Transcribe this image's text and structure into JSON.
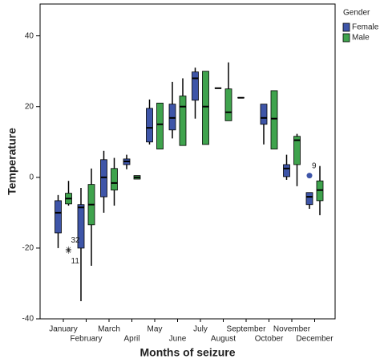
{
  "chart_data": {
    "type": "boxplot",
    "x_label": "Months of seizure",
    "y_label": "Temperature",
    "legend_title": "Gender",
    "legend_position": "upper right",
    "categories": [
      "January",
      "February",
      "March",
      "April",
      "May",
      "June",
      "July",
      "August",
      "September",
      "October",
      "November",
      "December"
    ],
    "ylim": [
      -40,
      49
    ],
    "yticks": [
      -40,
      -20,
      0,
      20,
      40
    ],
    "series": [
      {
        "name": "Female",
        "color": "#3e55a8",
        "low": [
          -20,
          -35,
          -10,
          2.3,
          9.3,
          11,
          16.6,
          25.2,
          22.5,
          9.3,
          -0.7,
          -8.9
        ],
        "q1": [
          -15.7,
          -20,
          -5.5,
          3.6,
          10,
          13.4,
          21.8,
          25.2,
          22.5,
          15,
          0.2,
          -7.7
        ],
        "median": [
          -10,
          -8.5,
          0,
          4.5,
          14,
          16.8,
          28,
          25.2,
          22.5,
          16.8,
          2.5,
          -5.5
        ],
        "q3": [
          -6.6,
          -7.7,
          5,
          5.2,
          19.5,
          20.7,
          29.8,
          25.2,
          22.5,
          20.7,
          3.6,
          -4.3
        ],
        "high": [
          -5,
          -3,
          7.5,
          6.4,
          22,
          27,
          31,
          25.2,
          22.5,
          20.7,
          6.4,
          -4.3
        ],
        "outliers": [
          {
            "category": 11,
            "value": 0.5,
            "label": "9",
            "marker": "circle"
          }
        ]
      },
      {
        "name": "Male",
        "color": "#3fa34d",
        "low": [
          -8,
          -25,
          -8,
          -0.5,
          8,
          9,
          9.3,
          16,
          null,
          8,
          -2.5,
          -10.7
        ],
        "q1": [
          -7.5,
          -13.4,
          -3.6,
          -0.5,
          8,
          9,
          9.3,
          16,
          null,
          8,
          3.6,
          -6.6
        ],
        "median": [
          -6,
          -7.7,
          -1.6,
          0,
          15,
          20,
          20,
          18.4,
          null,
          16.6,
          10.5,
          -3.6
        ],
        "q3": [
          -4.5,
          -2,
          2.5,
          0.5,
          21,
          23,
          30,
          25,
          null,
          24.5,
          11.6,
          -1
        ],
        "high": [
          -1,
          2.5,
          5.5,
          0.5,
          21,
          28,
          30,
          32.5,
          null,
          24.5,
          12.3,
          3.2
        ],
        "outliers": [
          {
            "category": 0,
            "value": -20.5,
            "label": "32",
            "marker": "star"
          },
          {
            "category": 0,
            "value": -21,
            "label": "11",
            "marker": "star"
          }
        ]
      }
    ]
  }
}
